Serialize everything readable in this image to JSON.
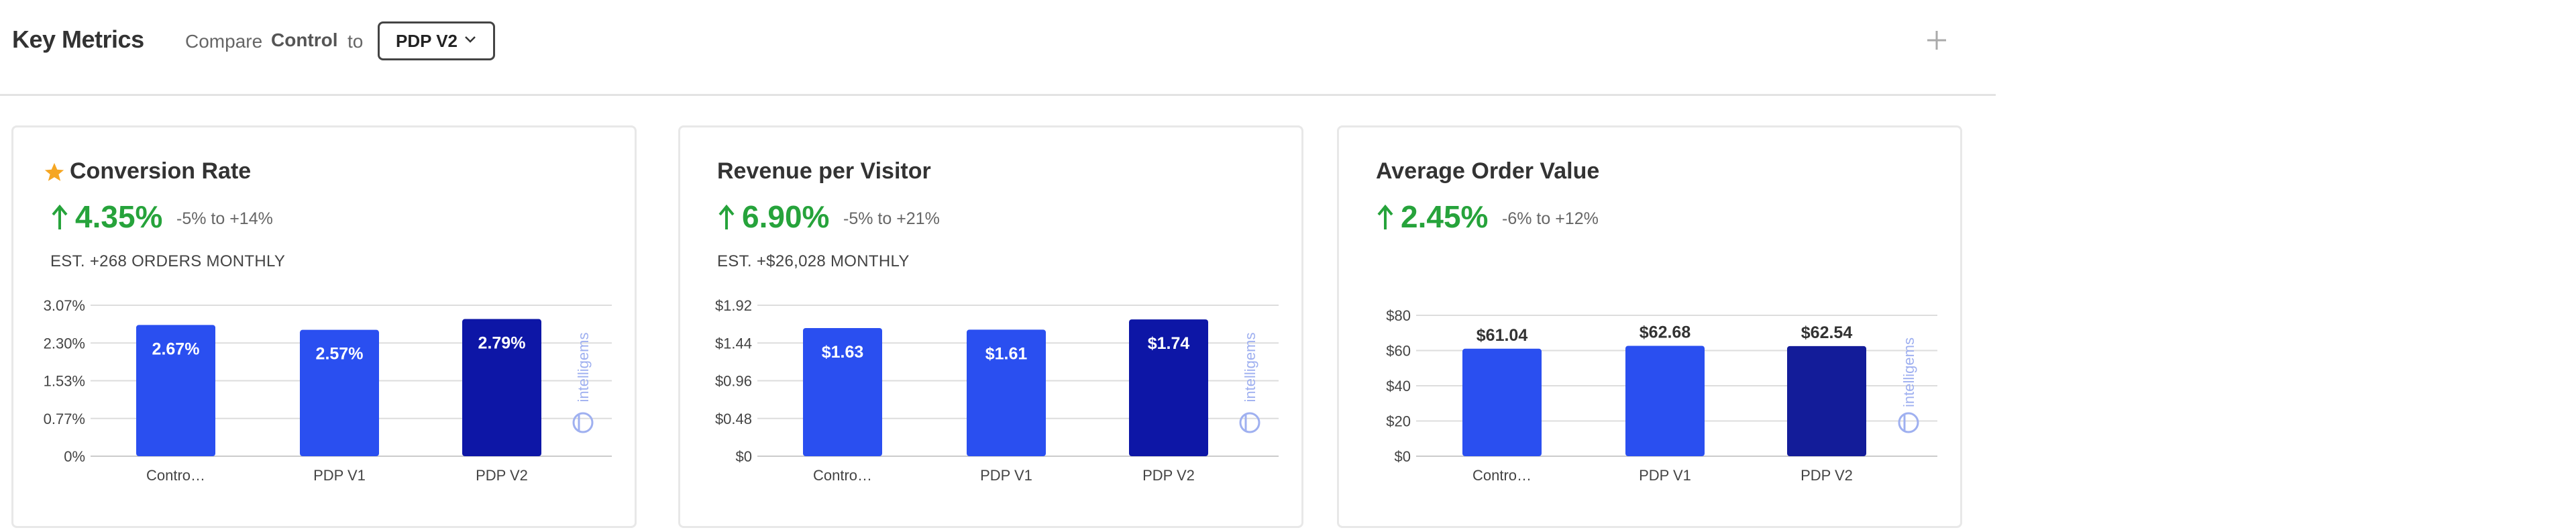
{
  "header": {
    "title": "Key Metrics",
    "compare_label": "Compare",
    "control_label": "Control",
    "to_label": "to",
    "dropdown_value": "PDP V2"
  },
  "colors": {
    "bar_light": "#2a4ff0",
    "bar_dark": "#0d16a6",
    "bar_dark_aov": "#131c99",
    "lift_green": "#26a33b",
    "star": "#f5a623",
    "grid": "#dddddd",
    "brand": "#9fb0f0"
  },
  "brand_name": "intelligems",
  "cards": [
    {
      "title": "Conversion Rate",
      "starred": true,
      "lift": "4.35%",
      "range": "-5% to +14%",
      "estimate": "EST. +268 ORDERS MONTHLY"
    },
    {
      "title": "Revenue per Visitor",
      "starred": false,
      "lift": "6.90%",
      "range": "-5% to +21%",
      "estimate": "EST. +$26,028 MONTHLY"
    },
    {
      "title": "Average Order Value",
      "starred": false,
      "lift": "2.45%",
      "range": "-6% to +12%",
      "estimate": ""
    }
  ],
  "chart_data": [
    {
      "type": "bar",
      "categories": [
        "Contro…",
        "PDP V1",
        "PDP V2"
      ],
      "values": [
        2.67,
        2.57,
        2.79
      ],
      "value_labels": [
        "2.67%",
        "2.57%",
        "2.79%"
      ],
      "ytick_labels": [
        "0%",
        "0.77%",
        "1.53%",
        "2.30%",
        "3.07%"
      ],
      "ylim": [
        0,
        3.07
      ],
      "label_position": "inside"
    },
    {
      "type": "bar",
      "categories": [
        "Contro…",
        "PDP V1",
        "PDP V2"
      ],
      "values": [
        1.63,
        1.61,
        1.74
      ],
      "value_labels": [
        "$1.63",
        "$1.61",
        "$1.74"
      ],
      "ytick_labels": [
        "$0",
        "$0.48",
        "$0.96",
        "$1.44",
        "$1.92"
      ],
      "ylim": [
        0,
        1.92
      ],
      "label_position": "inside"
    },
    {
      "type": "bar",
      "categories": [
        "Contro…",
        "PDP V1",
        "PDP V2"
      ],
      "values": [
        61.04,
        62.68,
        62.54
      ],
      "value_labels": [
        "$61.04",
        "$62.68",
        "$62.54"
      ],
      "ytick_labels": [
        "$0",
        "$20",
        "$40",
        "$60",
        "$80"
      ],
      "ylim": [
        0,
        80
      ],
      "label_position": "above"
    }
  ]
}
